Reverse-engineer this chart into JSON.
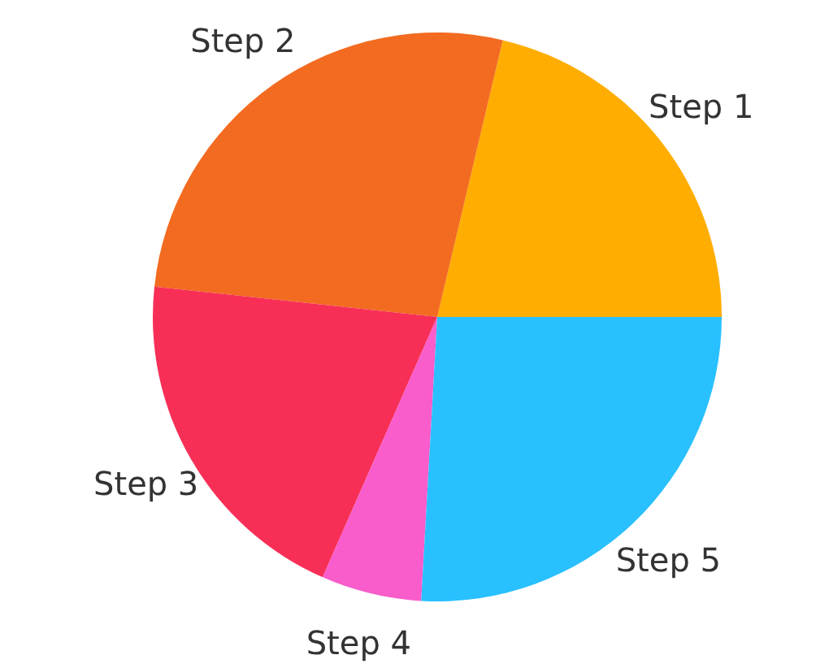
{
  "chart_data": {
    "type": "pie",
    "categories": [
      "Step 1",
      "Step 2",
      "Step 3",
      "Step 4",
      "Step 5"
    ],
    "values": [
      21.3,
      27.0,
      20.1,
      5.7,
      25.9
    ],
    "colors": [
      "#ffad00",
      "#f26b21",
      "#f72f57",
      "#f95ccb",
      "#29c0ff"
    ]
  }
}
